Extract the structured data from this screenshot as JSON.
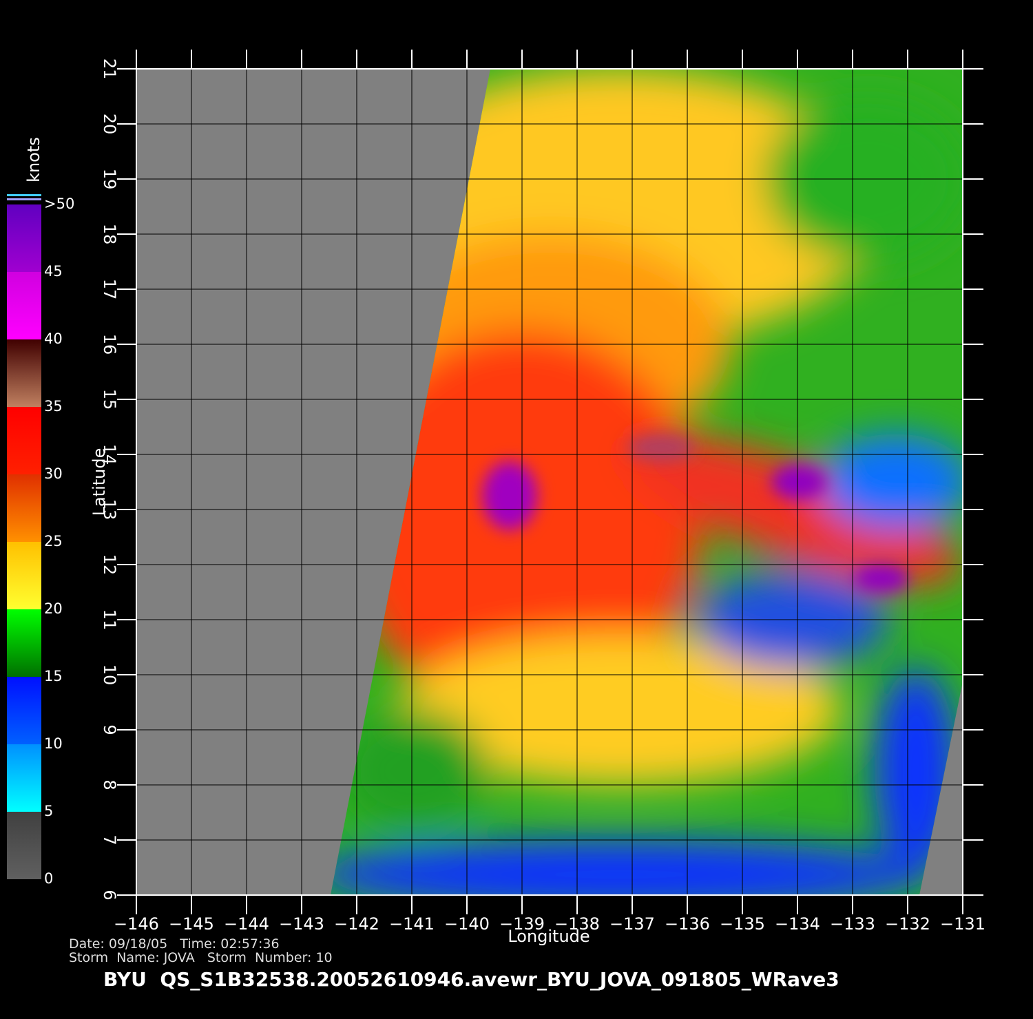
{
  "map": {
    "xlabel": "Longitude",
    "ylabel": "Latitude",
    "xlim": [
      -146,
      -131
    ],
    "ylim": [
      6,
      21
    ],
    "xticks": [
      {
        "value": -146,
        "label": "−146"
      },
      {
        "value": -145,
        "label": "−145"
      },
      {
        "value": -144,
        "label": "−144"
      },
      {
        "value": -143,
        "label": "−143"
      },
      {
        "value": -142,
        "label": "−142"
      },
      {
        "value": -141,
        "label": "−141"
      },
      {
        "value": -140,
        "label": "−140"
      },
      {
        "value": -139,
        "label": "−139"
      },
      {
        "value": -138,
        "label": "−138"
      },
      {
        "value": -137,
        "label": "−137"
      },
      {
        "value": -136,
        "label": "−136"
      },
      {
        "value": -135,
        "label": "−135"
      },
      {
        "value": -134,
        "label": "−134"
      },
      {
        "value": -133,
        "label": "−133"
      },
      {
        "value": -132,
        "label": "−132"
      },
      {
        "value": -131,
        "label": "−131"
      }
    ],
    "yticks": [
      6,
      7,
      8,
      9,
      10,
      11,
      12,
      13,
      14,
      15,
      16,
      17,
      18,
      19,
      20,
      21
    ],
    "grid": true
  },
  "colorbar": {
    "title": "knots",
    "lim": [
      0,
      50
    ],
    "ticks": [
      0,
      5,
      10,
      15,
      20,
      25,
      30,
      35,
      40,
      45,
      {
        "value": 50,
        "label": ">50"
      }
    ],
    "colors": [
      [
        "#606060",
        "#404040"
      ],
      [
        "#00ffff",
        "#0090ff"
      ],
      [
        "#0060ff",
        "#0010ff"
      ],
      [
        "#007000",
        "#00ff00"
      ],
      [
        "#ffff30",
        "#ffc000"
      ],
      [
        "#ff9000",
        "#e03000"
      ],
      [
        "#ff2000",
        "#ff0000"
      ],
      [
        "#c08060",
        "#400000"
      ],
      [
        "#ff00ff",
        "#d000e0"
      ],
      [
        "#a000d0",
        "#6000c0"
      ]
    ]
  },
  "footer": {
    "line1": "Date: 09/18/05   Time: 02:57:36",
    "line2": "Storm  Name: JOVA   Storm  Number: 10",
    "title": "BYU  QS_S1B32538.20052610946.avewr_BYU_JOVA_091805_WRave3"
  }
}
